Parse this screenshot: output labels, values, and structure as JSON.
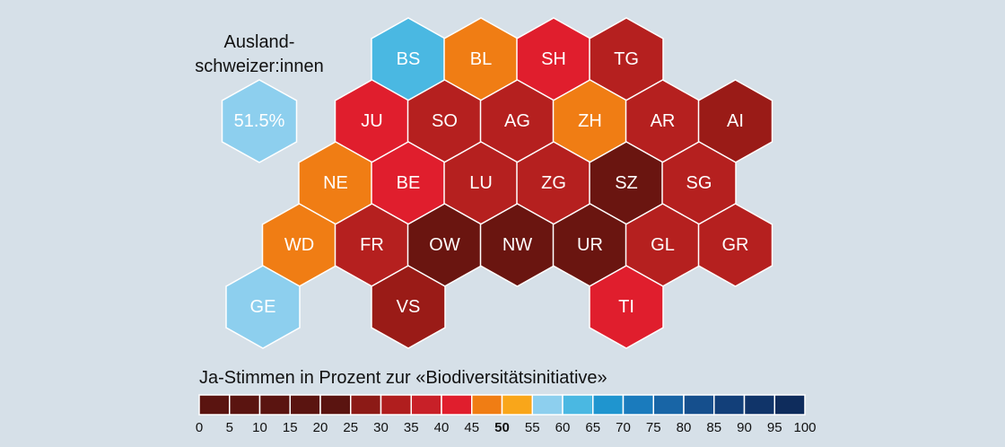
{
  "abroad": {
    "title_line1": "Ausland-",
    "title_line2": "schweizer:innen",
    "value": "51.5%",
    "color": "#8dcfee"
  },
  "map_title": "Ja-Stimmen in Prozent zur «Biodiversitätsinitiative»",
  "cantons": [
    {
      "code": "BS",
      "color": "#4ab8e2"
    },
    {
      "code": "BL",
      "color": "#f07d14"
    },
    {
      "code": "SH",
      "color": "#e01e2d"
    },
    {
      "code": "TG",
      "color": "#b5201f"
    },
    {
      "code": "JU",
      "color": "#e01e2d"
    },
    {
      "code": "SO",
      "color": "#b5201f"
    },
    {
      "code": "AG",
      "color": "#b5201f"
    },
    {
      "code": "ZH",
      "color": "#f07d14"
    },
    {
      "code": "AR",
      "color": "#b5201f"
    },
    {
      "code": "AI",
      "color": "#9a1b17"
    },
    {
      "code": "NE",
      "color": "#f07d14"
    },
    {
      "code": "BE",
      "color": "#e01e2d"
    },
    {
      "code": "LU",
      "color": "#b5201f"
    },
    {
      "code": "ZG",
      "color": "#b5201f"
    },
    {
      "code": "SZ",
      "color": "#6a1510"
    },
    {
      "code": "SG",
      "color": "#b5201f"
    },
    {
      "code": "WD",
      "color": "#f07d14"
    },
    {
      "code": "FR",
      "color": "#b5201f"
    },
    {
      "code": "OW",
      "color": "#6a1510"
    },
    {
      "code": "NW",
      "color": "#6a1510"
    },
    {
      "code": "UR",
      "color": "#6a1510"
    },
    {
      "code": "GL",
      "color": "#b5201f"
    },
    {
      "code": "GR",
      "color": "#b5201f"
    },
    {
      "code": "GE",
      "color": "#8dcfee"
    },
    {
      "code": "VS",
      "color": "#9a1b17"
    },
    {
      "code": "TI",
      "color": "#e01e2d"
    }
  ],
  "legend": {
    "ticks": [
      "0",
      "5",
      "10",
      "15",
      "20",
      "25",
      "30",
      "35",
      "40",
      "45",
      "50",
      "55",
      "60",
      "65",
      "70",
      "75",
      "80",
      "85",
      "90",
      "95",
      "100"
    ],
    "highlight_tick": "50",
    "colors": [
      "#5a1410",
      "#5a1410",
      "#5a1410",
      "#5a1410",
      "#5a1410",
      "#8c1a16",
      "#b01e1e",
      "#c82028",
      "#e01e2d",
      "#f07d14",
      "#f9a61a",
      "#8dcfee",
      "#4ab8e2",
      "#1f95cf",
      "#1a7bbd",
      "#1865a6",
      "#154f8d",
      "#123f79",
      "#103469",
      "#0e2c5c"
    ]
  }
}
